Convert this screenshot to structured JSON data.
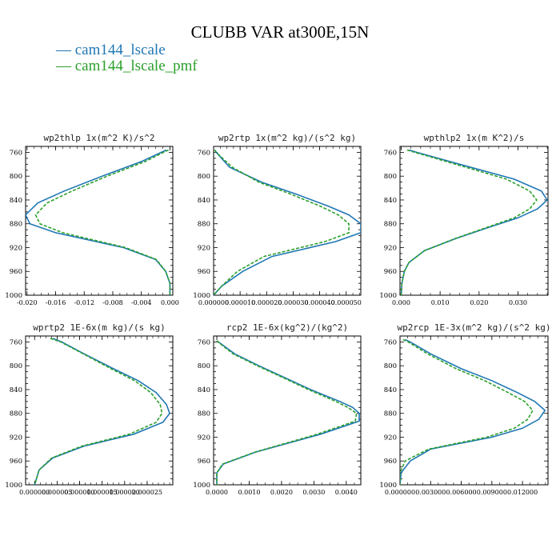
{
  "figure": {
    "title": "CLUBB VAR at300E,15N",
    "legend": [
      {
        "label": "cam144_lscale",
        "color": "#1f77b4",
        "dash": false
      },
      {
        "label": "cam144_lscale_pmf",
        "color": "#2ca02c",
        "dash": true
      }
    ]
  },
  "chart_data": [
    {
      "type": "line",
      "title": "wp2thlp  1x(m^2 K)/s^2",
      "xlim": [
        -0.0202,
        0.0004
      ],
      "ylim": [
        1000,
        750
      ],
      "y_reversed": true,
      "yticks": [
        760,
        800,
        840,
        880,
        920,
        960,
        1000
      ],
      "xticks": [
        -0.02,
        -0.016,
        -0.012,
        -0.008,
        -0.004,
        0.0
      ],
      "xtick_labels": [
        "-0.020",
        "-0.016",
        "-0.012",
        "-0.008",
        "-0.004",
        "0.000"
      ],
      "y": [
        756,
        760,
        775,
        800,
        825,
        845,
        865,
        880,
        895,
        920,
        940,
        960,
        980,
        1000
      ],
      "series": [
        {
          "name": "cam144_lscale",
          "x": [
            -0.0005,
            -0.0012,
            -0.0039,
            -0.0095,
            -0.0148,
            -0.0185,
            -0.0202,
            -0.0196,
            -0.016,
            -0.0065,
            -0.002,
            -0.0006,
            0.0,
            0.0
          ]
        },
        {
          "name": "cam144_lscale_pmf",
          "x": [
            -0.0002,
            -0.0009,
            -0.0034,
            -0.0088,
            -0.0137,
            -0.0172,
            -0.0188,
            -0.0182,
            -0.015,
            -0.0062,
            -0.0019,
            -0.0006,
            0.0,
            0.0
          ]
        }
      ]
    },
    {
      "type": "line",
      "title": "wp2rtp  1x(m^2 kg)/(s^2 kg)",
      "xlim": [
        0.0,
        5.55e-05
      ],
      "ylim": [
        1000,
        750
      ],
      "y_reversed": true,
      "yticks": [
        760,
        800,
        840,
        880,
        920,
        960,
        1000
      ],
      "xticks": [
        0.0,
        1e-05,
        2e-05,
        3e-05,
        4e-05,
        5e-05
      ],
      "xtick_labels": [
        "0.000000",
        "0.000010",
        "0.000020",
        "0.000030",
        "0.000040",
        "0.000050"
      ],
      "y": [
        756,
        760,
        785,
        810,
        830,
        850,
        865,
        880,
        895,
        910,
        935,
        960,
        985,
        1000
      ],
      "series": [
        {
          "name": "cam144_lscale",
          "x": [
            5e-07,
            1e-06,
            6e-06,
            1.8e-05,
            3.1e-05,
            4.3e-05,
            5.1e-05,
            5.55e-05,
            5.55e-05,
            4.6e-05,
            2.2e-05,
            1.1e-05,
            3e-06,
            0.0
          ]
        },
        {
          "name": "cam144_lscale_pmf",
          "x": [
            4e-07,
            1e-06,
            7e-06,
            1.7e-05,
            2.9e-05,
            4e-05,
            4.7e-05,
            5.1e-05,
            5.1e-05,
            4.2e-05,
            1.9e-05,
            9e-06,
            3e-06,
            0.0
          ]
        }
      ]
    },
    {
      "type": "line",
      "title": "wpthlp2  1x(m K^2)/s",
      "xlim": [
        -0.0003,
        0.0377
      ],
      "ylim": [
        1000,
        750
      ],
      "y_reversed": true,
      "yticks": [
        760,
        800,
        840,
        880,
        920,
        960,
        1000
      ],
      "xticks": [
        0.0,
        0.01,
        0.02,
        0.03
      ],
      "xtick_labels": [
        "0.000",
        "0.010",
        "0.020",
        "0.030"
      ],
      "y": [
        756,
        760,
        780,
        805,
        825,
        840,
        855,
        870,
        885,
        905,
        925,
        945,
        960,
        980,
        1000
      ],
      "series": [
        {
          "name": "cam144_lscale",
          "x": [
            0.002,
            0.004,
            0.015,
            0.029,
            0.036,
            0.0375,
            0.035,
            0.03,
            0.023,
            0.014,
            0.006,
            0.002,
            0.0008,
            0.0002,
            0.0
          ]
        },
        {
          "name": "cam144_lscale_pmf",
          "x": [
            0.0015,
            0.0035,
            0.014,
            0.027,
            0.033,
            0.0348,
            0.033,
            0.029,
            0.0225,
            0.0138,
            0.006,
            0.002,
            0.0008,
            0.0002,
            0.0
          ]
        }
      ]
    },
    {
      "type": "line",
      "title": "wprtp2  1E-6x(m kg)/(s kg)",
      "xlim": [
        -2e-06,
        3.07e-05
      ],
      "ylim": [
        1000,
        750
      ],
      "y_reversed": true,
      "yticks": [
        760,
        800,
        840,
        880,
        920,
        960,
        1000
      ],
      "xticks": [
        0.0,
        5e-06,
        1e-05,
        1.5e-05,
        2e-05,
        2.5e-05
      ],
      "xtick_labels": [
        "0.000000",
        "0.000005",
        "0.000010",
        "0.000015",
        "0.000020",
        "0.000025"
      ],
      "y": [
        754,
        760,
        780,
        805,
        825,
        845,
        865,
        880,
        895,
        915,
        935,
        955,
        975,
        1000
      ],
      "series": [
        {
          "name": "cam144_lscale",
          "x": [
            4e-06,
            6e-06,
            1.1e-05,
            1.75e-05,
            2.3e-05,
            2.7e-05,
            2.93e-05,
            3e-05,
            2.85e-05,
            2.2e-05,
            1.1e-05,
            4e-06,
            1e-06,
            0.0
          ]
        },
        {
          "name": "cam144_lscale_pmf",
          "x": [
            3.5e-06,
            5.8e-06,
            1.08e-05,
            1.7e-05,
            2.22e-05,
            2.58e-05,
            2.79e-05,
            2.83e-05,
            2.7e-05,
            2.1e-05,
            1.05e-05,
            3.8e-06,
            1e-06,
            0.0
          ]
        }
      ]
    },
    {
      "type": "line",
      "title": "rcp2  1E-6x(kg^2)/(kg^2)",
      "xlim": [
        -0.0001,
        0.00445
      ],
      "ylim": [
        1000,
        750
      ],
      "y_reversed": true,
      "yticks": [
        760,
        800,
        840,
        880,
        920,
        960,
        1000
      ],
      "xticks": [
        0.0,
        0.001,
        0.002,
        0.003,
        0.004
      ],
      "xtick_labels": [
        "0.0000",
        "0.0010",
        "0.0020",
        "0.0030",
        "0.0040"
      ],
      "y": [
        758,
        762,
        780,
        800,
        820,
        840,
        860,
        870,
        880,
        893,
        915,
        945,
        965,
        980,
        1000
      ],
      "series": [
        {
          "name": "cam144_lscale",
          "x": [
            0.0,
            0.0001,
            0.00055,
            0.0013,
            0.0021,
            0.0029,
            0.0038,
            0.0042,
            0.0044,
            0.0044,
            0.0032,
            0.0012,
            0.0002,
            0.0,
            0.0
          ]
        },
        {
          "name": "cam144_lscale_pmf",
          "x": [
            0.0,
            8e-05,
            0.0005,
            0.00125,
            0.00205,
            0.00283,
            0.00368,
            0.00405,
            0.00432,
            0.00428,
            0.0031,
            0.00118,
            0.00018,
            0.0,
            0.0
          ]
        }
      ]
    },
    {
      "type": "line",
      "title": "wp2rcp  1E-3x(m^2 kg)/(s^2 kg)",
      "xlim": [
        0.0,
        0.0145
      ],
      "ylim": [
        1000,
        750
      ],
      "y_reversed": true,
      "yticks": [
        760,
        800,
        840,
        880,
        920,
        960,
        1000
      ],
      "xticks": [
        0.0,
        0.003,
        0.006,
        0.009,
        0.012
      ],
      "xtick_labels": [
        "0.000000",
        "0.003000",
        "0.006000",
        "0.009000",
        "0.012000"
      ],
      "y": [
        756,
        760,
        780,
        805,
        825,
        845,
        860,
        875,
        890,
        905,
        920,
        940,
        960,
        980,
        1000
      ],
      "series": [
        {
          "name": "cam144_lscale",
          "x": [
            0.0005,
            0.001,
            0.003,
            0.006,
            0.009,
            0.0115,
            0.0132,
            0.0142,
            0.0136,
            0.012,
            0.009,
            0.003,
            0.001,
            0.0001,
            0.0
          ]
        },
        {
          "name": "cam144_lscale_pmf",
          "x": [
            0.0003,
            0.0008,
            0.0027,
            0.0055,
            0.0083,
            0.0106,
            0.0122,
            0.013,
            0.0125,
            0.0112,
            0.0085,
            0.0028,
            0.0005,
            0.0,
            0.0
          ]
        }
      ]
    }
  ]
}
